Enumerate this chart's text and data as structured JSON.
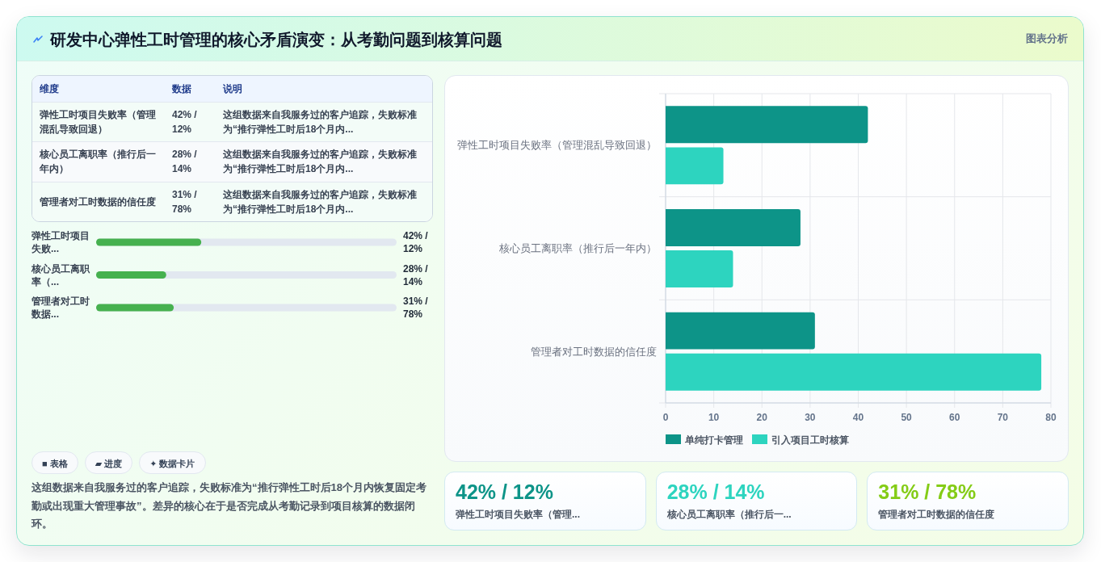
{
  "chart_data": [
    {
      "type": "other",
      "title": "研发中心弹性工时管理的核心矛盾演变：从考勤问题到核算问题",
      "annotations": [
        "图表分析"
      ]
    },
    {
      "type": "other",
      "annotations": [
        "维度",
        "数据",
        "说明",
        "弹性工时项目失败率（管理混乱导致回退）",
        "42% / 12%",
        "这组数据来自我服务过的客户追踪，失败标准为“推行弹性工时后18个月内...",
        "核心员工离职率（推行后一年内）",
        "28% / 14%",
        "这组数据来自我服务过的客户追踪，失败标准为“推行弹性工时后18个月内...",
        "管理者对工时数据的信任度",
        "31% / 78%",
        "这组数据来自我服务过的客户追踪，失败标准为“推行弹性工时后18个月内..."
      ]
    },
    {
      "type": "bar",
      "orientation": "horizontal",
      "categories": [
        "弹性工时项目失败...",
        "核心员工离职率（...",
        "管理者对工时数据..."
      ],
      "values": [
        42,
        28,
        31
      ],
      "value_labels": [
        "42% / 12%",
        "28% / 14%",
        "31% / 78%"
      ],
      "color": "#46b14f",
      "xlim": [
        0,
        120
      ],
      "tick_labels": "y"
    },
    {
      "type": "other",
      "categories": [
        "■ 表格",
        "▰ 进度",
        "✦ 数据卡片"
      ],
      "annotations": [
        "这组数据来自我服务过的客户追踪，失败标准为“推行弹性工时后18个月内恢复固定考勤或出现重大管理事故”。差异的核心在于是否完成从考勤记录到项目核算的数据闭环。"
      ]
    },
    {
      "type": "bar",
      "orientation": "horizontal",
      "categories": [
        "弹性工时项目失败率（管理混乱导致回退）",
        "核心员工离职率（推行后一年内）",
        "管理者对工时数据的信任度"
      ],
      "series": [
        {
          "name": "单纯打卡管理",
          "color": "#0d9488",
          "values": [
            42,
            28,
            31
          ]
        },
        {
          "name": "引入项目工时核算",
          "color": "#2dd4bf",
          "values": [
            12,
            14,
            78
          ]
        }
      ],
      "xlim": [
        0,
        80
      ],
      "xticks": [
        0,
        10,
        20,
        30,
        40,
        50,
        60,
        70,
        80
      ],
      "grid": true,
      "legend": "bottom"
    },
    {
      "type": "other",
      "categories": [
        "弹性工时项目失败率（管理...",
        "核心员工离职率（推行后一...",
        "管理者对工时数据的信任度"
      ],
      "annotations": [
        "42% / 12%",
        "28% / 14%",
        "31% / 78%"
      ]
    }
  ]
}
